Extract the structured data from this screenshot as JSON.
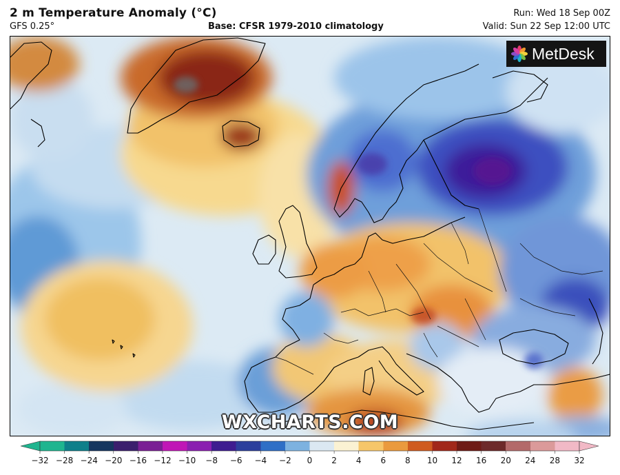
{
  "header": {
    "title": "2 m Temperature Anomaly (°C)",
    "model": "GFS 0.25°",
    "base": "Base: CFSR 1979-2010 climatology",
    "run": "Run: Wed 18 Sep 00Z",
    "valid": "Valid: Sun 22 Sep 12:00 UTC"
  },
  "logo": {
    "text": "MetDesk",
    "icon": "metdesk-flower-icon"
  },
  "watermark": "WXCHARTS.COM",
  "colorbar": {
    "min": -32,
    "max": 32,
    "ticks": [
      "−32",
      "−28",
      "−24",
      "−20",
      "−16",
      "−12",
      "−10",
      "−8",
      "−6",
      "−4",
      "−2",
      "0",
      "2",
      "4",
      "6",
      "8",
      "10",
      "12",
      "16",
      "20",
      "24",
      "28",
      "32"
    ],
    "colors": [
      "#1fb58f",
      "#0e7f8a",
      "#16365f",
      "#3b1f6d",
      "#7a1f94",
      "#c016b6",
      "#8a1fb0",
      "#3e1d90",
      "#2c3f9c",
      "#2f6fc6",
      "#7db2e0",
      "#dbe8f2",
      "#fbf2d3",
      "#f6c66a",
      "#ea9a3e",
      "#cf5b1f",
      "#a1281a",
      "#6e1b16",
      "#6d2a2a",
      "#b36a6a",
      "#db9a9a",
      "#f1b9c6"
    ]
  }
}
